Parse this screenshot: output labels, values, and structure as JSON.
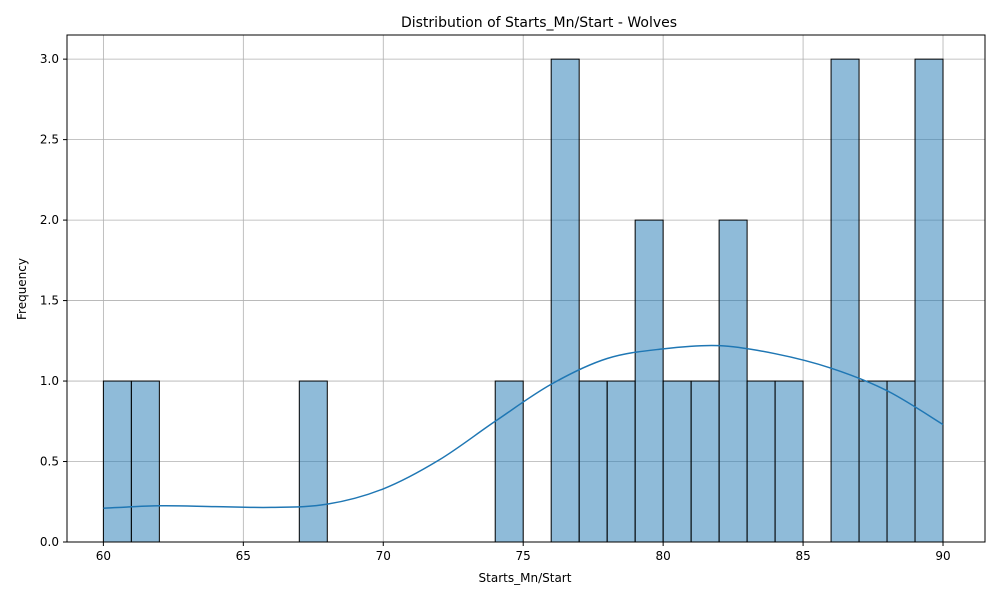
{
  "chart_data": {
    "type": "bar",
    "title": "Distribution of Starts_Mn/Start - Wolves",
    "xlabel": "Starts_Mn/Start",
    "ylabel": "Frequency",
    "xlim": [
      58.7,
      91.5
    ],
    "ylim": [
      0,
      3.15
    ],
    "xticks": [
      60,
      65,
      70,
      75,
      80,
      85,
      90
    ],
    "yticks": [
      0.0,
      0.5,
      1.0,
      1.5,
      2.0,
      2.5,
      3.0
    ],
    "grid": true,
    "bar_color": "#1f77b4",
    "bar_opacity": 0.5,
    "bins": [
      {
        "start": 60,
        "end": 61,
        "count": 1
      },
      {
        "start": 61,
        "end": 62,
        "count": 1
      },
      {
        "start": 67,
        "end": 68,
        "count": 1
      },
      {
        "start": 74,
        "end": 75,
        "count": 1
      },
      {
        "start": 76,
        "end": 77,
        "count": 3
      },
      {
        "start": 77,
        "end": 78,
        "count": 1
      },
      {
        "start": 78,
        "end": 79,
        "count": 1
      },
      {
        "start": 79,
        "end": 80,
        "count": 2
      },
      {
        "start": 80,
        "end": 81,
        "count": 1
      },
      {
        "start": 81,
        "end": 82,
        "count": 1
      },
      {
        "start": 82,
        "end": 83,
        "count": 2
      },
      {
        "start": 83,
        "end": 84,
        "count": 1
      },
      {
        "start": 84,
        "end": 85,
        "count": 1
      },
      {
        "start": 86,
        "end": 87,
        "count": 3
      },
      {
        "start": 87,
        "end": 88,
        "count": 1
      },
      {
        "start": 88,
        "end": 89,
        "count": 1
      },
      {
        "start": 89,
        "end": 90,
        "count": 3
      }
    ],
    "kde": {
      "color": "#1f77b4",
      "x": [
        60,
        62,
        64,
        66,
        68,
        70,
        72,
        74,
        76,
        78,
        80,
        82,
        84,
        86,
        88,
        90
      ],
      "y": [
        0.21,
        0.225,
        0.22,
        0.215,
        0.235,
        0.33,
        0.51,
        0.75,
        0.98,
        1.14,
        1.2,
        1.22,
        1.17,
        1.08,
        0.94,
        0.73
      ]
    }
  }
}
